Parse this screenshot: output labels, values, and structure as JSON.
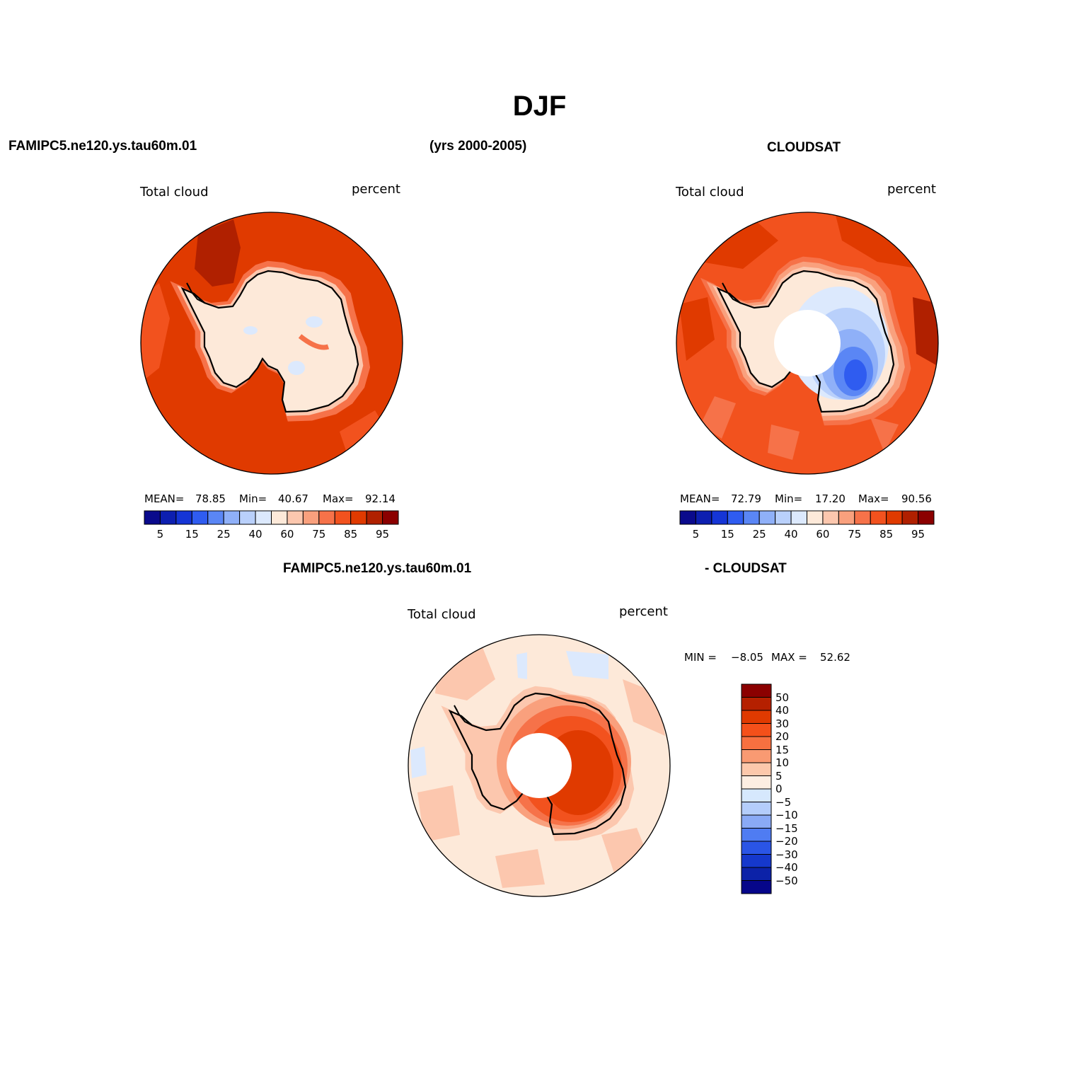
{
  "title": "DJF",
  "header": {
    "left": "FAMIPC5.ne120.ys.tau60m.01",
    "center": "(yrs 2000-2005)",
    "right": "CLOUDSAT",
    "diff_left": "FAMIPC5.ne120.ys.tau60m.01",
    "diff_right": "- CLOUDSAT"
  },
  "panels": [
    {
      "variable": "Total cloud",
      "units": "percent",
      "stats": {
        "mean_label": "MEAN=",
        "mean": "78.85",
        "min_label": "Min=",
        "min": "40.67",
        "max_label": "Max=",
        "max": "92.14"
      }
    },
    {
      "variable": "Total cloud",
      "units": "percent",
      "stats": {
        "mean_label": "MEAN=",
        "mean": "72.79",
        "min_label": "Min=",
        "min": "17.20",
        "max_label": "Max=",
        "max": "90.56"
      }
    },
    {
      "variable": "Total cloud",
      "units": "percent",
      "stats": {
        "min_label": "MIN =",
        "min": "−8.05",
        "max_label": "MAX =",
        "max": "52.62"
      }
    }
  ],
  "colorbar_main": {
    "colors": [
      "#0a0a8c",
      "#0d1fb0",
      "#1535d6",
      "#2f5cf0",
      "#5a86f5",
      "#8fb0f8",
      "#b9d0fb",
      "#dce9fd",
      "#fde9d9",
      "#fcc7ae",
      "#f9a07d",
      "#f67249",
      "#f2521e",
      "#e03a00",
      "#b02000",
      "#8b0000"
    ],
    "tick_labels": [
      "5",
      "15",
      "25",
      "40",
      "60",
      "75",
      "85",
      "95"
    ]
  },
  "colorbar_diff": {
    "colors": [
      "#8b0000",
      "#b52000",
      "#e03a00",
      "#f4501a",
      "#f77040",
      "#f99a72",
      "#fcc8ab",
      "#fdeee2",
      "#d6e8fd",
      "#b4cdfb",
      "#8aaaf6",
      "#4f7cf2",
      "#2a55e6",
      "#1538cc",
      "#0c22a8",
      "#06068a"
    ],
    "tick_labels": [
      "50",
      "40",
      "30",
      "20",
      "15",
      "10",
      "5",
      "0",
      "−5",
      "−10",
      "−15",
      "−20",
      "−30",
      "−40",
      "−50"
    ]
  },
  "chart_data": {
    "type": "map",
    "projection": "south polar stereographic",
    "maps": [
      {
        "variable": "Total cloud",
        "units": "percent",
        "mean": 78.85,
        "min": 40.67,
        "max": 92.14,
        "contour_levels": [
          5,
          10,
          15,
          20,
          25,
          30,
          40,
          50,
          60,
          65,
          75,
          80,
          85,
          90,
          95
        ]
      },
      {
        "variable": "Total cloud",
        "units": "percent",
        "mean": 72.79,
        "min": 17.2,
        "max": 90.56,
        "contour_levels": [
          5,
          10,
          15,
          20,
          25,
          30,
          40,
          50,
          60,
          65,
          75,
          80,
          85,
          90,
          95
        ]
      },
      {
        "variable": "Total cloud",
        "units": "percent",
        "min": -8.05,
        "max": 52.62,
        "contour_levels": [
          -50,
          -40,
          -30,
          -20,
          -15,
          -10,
          -5,
          0,
          5,
          10,
          15,
          20,
          30,
          40,
          50
        ]
      }
    ]
  }
}
